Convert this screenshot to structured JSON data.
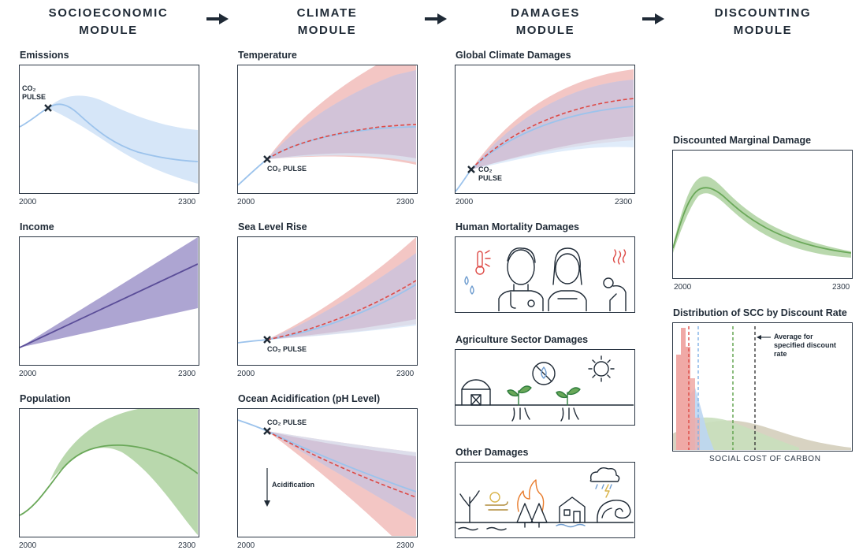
{
  "modules": [
    {
      "line1": "SOCIOECONOMIC",
      "line2": "MODULE"
    },
    {
      "line1": "CLIMATE",
      "line2": "MODULE"
    },
    {
      "line1": "DAMAGES",
      "line2": "MODULE"
    },
    {
      "line1": "DISCOUNTING",
      "line2": "MODULE"
    }
  ],
  "panels": {
    "emissions": {
      "title": "Emissions",
      "x_start": "2000",
      "x_end": "2300",
      "pulse_line1": "CO₂",
      "pulse_line2": "PULSE"
    },
    "income": {
      "title": "Income",
      "x_start": "2000",
      "x_end": "2300"
    },
    "population": {
      "title": "Population",
      "x_start": "2000",
      "x_end": "2300"
    },
    "temperature": {
      "title": "Temperature",
      "x_start": "2000",
      "x_end": "2300",
      "pulse": "CO₂ PULSE"
    },
    "sea_level": {
      "title": "Sea Level Rise",
      "x_start": "2000",
      "x_end": "2300",
      "pulse": "CO₂ PULSE"
    },
    "ocean": {
      "title": "Ocean Acidification (pH Level)",
      "x_start": "2000",
      "x_end": "2300",
      "pulse": "CO₂ PULSE",
      "note": "Acidification"
    },
    "global_damages": {
      "title": "Global Climate Damages",
      "x_start": "2000",
      "x_end": "2300",
      "pulse_line1": "CO₂",
      "pulse_line2": "PULSE"
    },
    "mortality": {
      "title": "Human Mortality Damages"
    },
    "agriculture": {
      "title": "Agriculture Sector Damages"
    },
    "other": {
      "title": "Other Damages"
    },
    "discounted": {
      "title": "Discounted Marginal Damage",
      "x_start": "2000",
      "x_end": "2300"
    },
    "distribution": {
      "title": "Distribution of SCC by Discount Rate",
      "x_caption": "SOCIAL COST OF CARBON",
      "note_line1": "Average for",
      "note_line2": "specified discount",
      "note_line3": "rate"
    }
  },
  "colors": {
    "blue_band": "#d6e6f8",
    "blue_line": "#9cc3ec",
    "red_band": "#f3c6c4",
    "red_dash": "#dd4a46",
    "purple_band": "#a49bcd",
    "purple_line": "#5a4d98",
    "green_band": "#b9d8ad",
    "green_line": "#6aa859",
    "dark": "#1f2a36"
  },
  "icons": [
    "arrow-right-icon",
    "thermometer-icon",
    "water-drop-icon",
    "doctor-icon",
    "nurse-icon",
    "sick-person-icon",
    "barn-icon",
    "plant-icon",
    "no-water-icon",
    "sun-icon",
    "bare-tree-icon",
    "wind-icon",
    "wildfire-icon",
    "flooded-house-icon",
    "storm-cloud-icon",
    "wave-icon"
  ]
}
